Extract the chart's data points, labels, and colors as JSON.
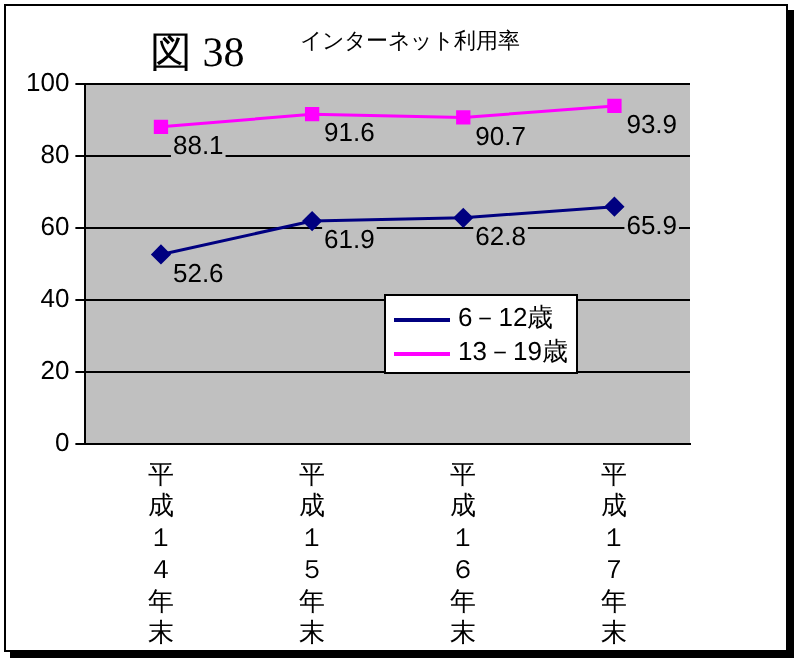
{
  "chart_data": {
    "type": "line",
    "title": "図 38",
    "subtitle": "インターネット利用率",
    "categories": [
      "平成１４年末",
      "平成１５年末",
      "平成１６年末",
      "平成１７年末"
    ],
    "series": [
      {
        "name": "6－12歳",
        "color": "#000080",
        "values": [
          52.6,
          61.9,
          62.8,
          65.9
        ],
        "marker": "diamond"
      },
      {
        "name": "13－19歳",
        "color": "#ff00ff",
        "values": [
          88.1,
          91.6,
          90.7,
          93.9
        ],
        "marker": "square"
      }
    ],
    "ylim": [
      0,
      100
    ],
    "yticks": [
      0,
      20,
      40,
      60,
      80,
      100
    ],
    "grid": "y",
    "legend": "bottom right",
    "data_labels": true,
    "line_style": "solid"
  }
}
